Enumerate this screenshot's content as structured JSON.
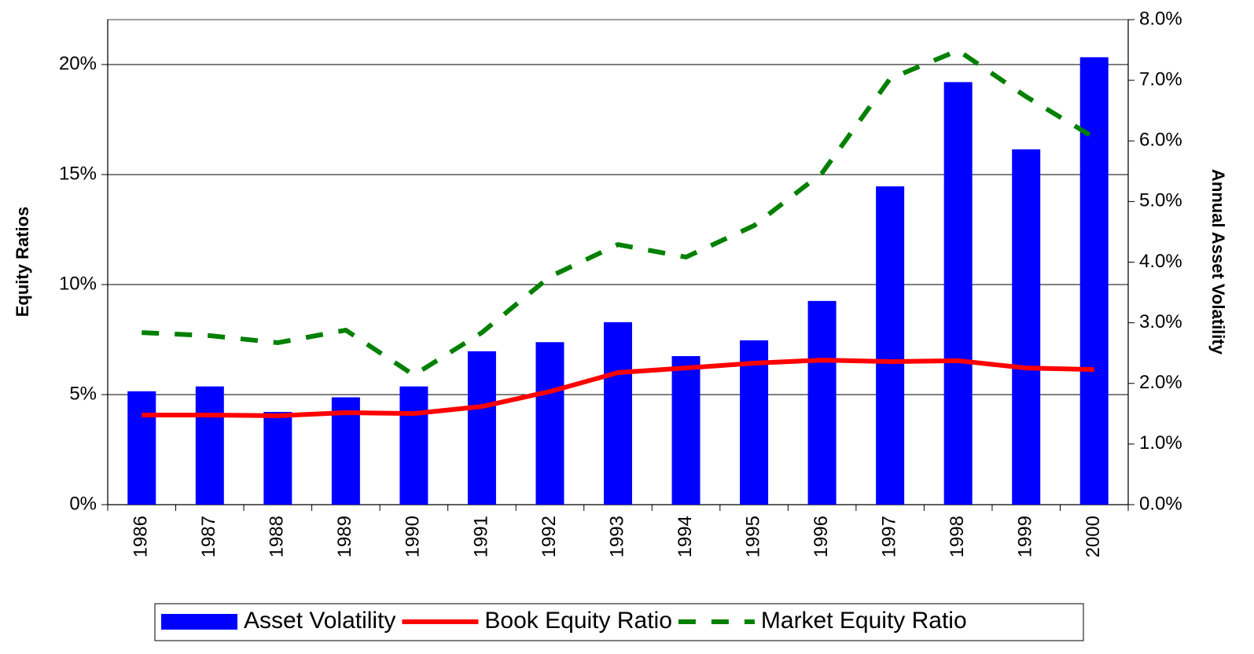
{
  "chart_data": {
    "type": "bar-line",
    "y_label": "Equity Ratios",
    "y2_label": "Annual Asset Volatility",
    "categories": [
      "1986",
      "1987",
      "1988",
      "1989",
      "1990",
      "1991",
      "1992",
      "1993",
      "1994",
      "1995",
      "1996",
      "1997",
      "1998",
      "1999",
      "2000"
    ],
    "series": [
      {
        "name": "Asset Volatility",
        "type": "bar",
        "axis": "y2",
        "color": "#0000ff",
        "values": [
          1.87,
          1.95,
          1.53,
          1.77,
          1.95,
          2.53,
          2.68,
          3.01,
          2.45,
          2.71,
          3.36,
          5.25,
          6.97,
          5.86,
          7.38
        ]
      },
      {
        "name": "Book Equity Ratio",
        "type": "line",
        "color": "#ff0000",
        "dash": "solid",
        "values": [
          4.07,
          4.07,
          4.04,
          4.18,
          4.14,
          4.46,
          5.14,
          6.0,
          6.21,
          6.43,
          6.57,
          6.5,
          6.54,
          6.21,
          6.14
        ]
      },
      {
        "name": "Market Equity Ratio",
        "type": "line",
        "color": "#008000",
        "dash": "dashed",
        "values": [
          7.82,
          7.68,
          7.36,
          7.93,
          5.89,
          7.82,
          10.36,
          11.82,
          11.25,
          12.68,
          15.07,
          19.36,
          20.64,
          18.54,
          16.68
        ]
      }
    ],
    "ylim": [
      0,
      22.04
    ],
    "yticks": [
      {
        "value": 0,
        "label": "0%"
      },
      {
        "value": 5,
        "label": "5%"
      },
      {
        "value": 10,
        "label": "10%"
      },
      {
        "value": 15,
        "label": "15%"
      },
      {
        "value": 20,
        "label": "20%"
      }
    ],
    "y2lim": [
      0,
      8
    ],
    "y2ticks": [
      {
        "value": 0,
        "label": "0.0%"
      },
      {
        "value": 1,
        "label": "1.0%"
      },
      {
        "value": 2,
        "label": "2.0%"
      },
      {
        "value": 3,
        "label": "3.0%"
      },
      {
        "value": 4,
        "label": "4.0%"
      },
      {
        "value": 5,
        "label": "5.0%"
      },
      {
        "value": 6,
        "label": "6.0%"
      },
      {
        "value": 7,
        "label": "7.0%"
      },
      {
        "value": 8,
        "label": "8.0%"
      }
    ],
    "grid": true,
    "legend": "bottom"
  }
}
